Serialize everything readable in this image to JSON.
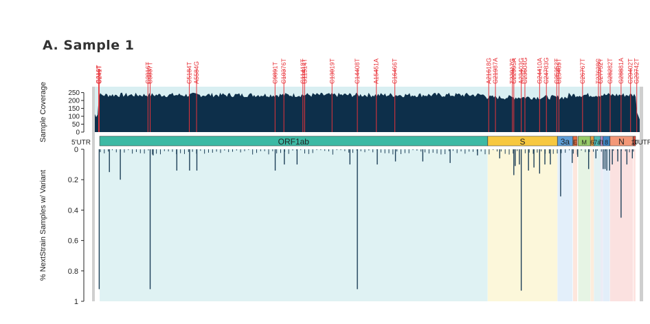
{
  "figure": {
    "panel_title": "A. Sample 1"
  },
  "chart_data": [
    {
      "type": "area",
      "name": "coverage",
      "ylabel": "Sample Coverage",
      "yticks": [
        0,
        50,
        100,
        150,
        200,
        250
      ],
      "ylim": [
        0,
        270
      ],
      "xlim": [
        0,
        29903
      ],
      "fill_color": "#0d2f4a",
      "background_color": "#d9eff2",
      "typical_coverage": 240,
      "variants": [
        {
          "label": "C241T",
          "pos": 241
        },
        {
          "label": "G210T",
          "pos": 210
        },
        {
          "label": "C3037T",
          "pos": 3037
        },
        {
          "label": "C2916T",
          "pos": 2916
        },
        {
          "label": "C5184T",
          "pos": 5184
        },
        {
          "label": "A5584G",
          "pos": 5584
        },
        {
          "label": "C9891T",
          "pos": 9891
        },
        {
          "label": "C10376T",
          "pos": 10376
        },
        {
          "label": "C11418T",
          "pos": 11418
        },
        {
          "label": "G11514T",
          "pos": 11514
        },
        {
          "label": "C13019T",
          "pos": 13019
        },
        {
          "label": "C14408T",
          "pos": 14408
        },
        {
          "label": "A15451A",
          "pos": 15451
        },
        {
          "label": "C16466T",
          "pos": 16466
        },
        {
          "label": "A21618G",
          "pos": 21618
        },
        {
          "label": "G21987A",
          "pos": 21987
        },
        {
          "label": "T22917G",
          "pos": 22917
        },
        {
          "label": "C22995A",
          "pos": 22995
        },
        {
          "label": "A23403G",
          "pos": 23403
        },
        {
          "label": "C23604G",
          "pos": 23604
        },
        {
          "label": "G24410A",
          "pos": 24410
        },
        {
          "label": "C24783G",
          "pos": 24783
        },
        {
          "label": "C25352T",
          "pos": 25352
        },
        {
          "label": "C25469T",
          "pos": 25469
        },
        {
          "label": "C26767T",
          "pos": 26767
        },
        {
          "label": "T27638C",
          "pos": 27638
        },
        {
          "label": "C27752T",
          "pos": 27752
        },
        {
          "label": "G28881A",
          "pos": 28881
        },
        {
          "label": "G28282T",
          "pos": 28282
        },
        {
          "label": "C29402T",
          "pos": 29402
        },
        {
          "label": "G29742T",
          "pos": 29742
        }
      ],
      "variant_color": "#e8333a"
    },
    {
      "type": "bar",
      "name": "variant-frequency",
      "ylabel": "% NextStrain Samples w/ Variant",
      "yticks": [
        "0",
        "0.2",
        "0.4",
        "0.6",
        "0.8",
        "1"
      ],
      "ylim": [
        1,
        0
      ],
      "xlim": [
        0,
        29903
      ],
      "bar_color": "#1c3e57",
      "genes": [
        {
          "name": "5'UTR",
          "start": 0,
          "end": 265,
          "color": "#ffffff",
          "bg": "#ffffff"
        },
        {
          "name": "ORF1ab",
          "start": 266,
          "end": 21555,
          "color": "#3db9a4",
          "bg": "#dff2f3"
        },
        {
          "name": "S",
          "start": 21563,
          "end": 25384,
          "color": "#f7c840",
          "bg": "#fcf7da"
        },
        {
          "name": "3a",
          "start": 25393,
          "end": 26220,
          "color": "#5f9fd9",
          "bg": "#e3effa"
        },
        {
          "name": "E",
          "start": 26245,
          "end": 26472,
          "color": "#e66b3d",
          "bg": "#fde6dc"
        },
        {
          "name": "M",
          "start": 26523,
          "end": 27191,
          "color": "#98cb6a",
          "bg": "#e6f4e4"
        },
        {
          "name": "6",
          "start": 27202,
          "end": 27387,
          "color": "#e49f3f",
          "bg": "#fcecdc"
        },
        {
          "name": "7a",
          "start": 27394,
          "end": 27759,
          "color": "#4fb9b4",
          "bg": "#e3f1f3"
        },
        {
          "name": "7b",
          "start": 27756,
          "end": 27887,
          "color": "#b38ccf",
          "bg": "#ecebf5"
        },
        {
          "name": "8",
          "start": 27894,
          "end": 28259,
          "color": "#3e86c7",
          "bg": "#e2eef9"
        },
        {
          "name": "N",
          "start": 28274,
          "end": 29533,
          "color": "#f39878",
          "bg": "#fbe1e0"
        },
        {
          "name": "10",
          "start": 29558,
          "end": 29674,
          "color": "#e64c3b",
          "bg": "#fde3e0"
        },
        {
          "name": "3'UTR",
          "start": 29675,
          "end": 29903,
          "color": "#ffffff",
          "bg": "#ffffff"
        }
      ],
      "bars": [
        {
          "pos": 241,
          "value": 0.92
        },
        {
          "pos": 3037,
          "value": 0.92
        },
        {
          "pos": 14408,
          "value": 0.92
        },
        {
          "pos": 23403,
          "value": 0.93
        },
        {
          "pos": 25563,
          "value": 0.31
        },
        {
          "pos": 28881,
          "value": 0.45
        },
        {
          "pos": 800,
          "value": 0.15
        },
        {
          "pos": 1400,
          "value": 0.2
        },
        {
          "pos": 3200,
          "value": 0.04
        },
        {
          "pos": 4500,
          "value": 0.14
        },
        {
          "pos": 5200,
          "value": 0.14
        },
        {
          "pos": 5600,
          "value": 0.14
        },
        {
          "pos": 9900,
          "value": 0.14
        },
        {
          "pos": 10400,
          "value": 0.1
        },
        {
          "pos": 11100,
          "value": 0.1
        },
        {
          "pos": 14000,
          "value": 0.1
        },
        {
          "pos": 15500,
          "value": 0.1
        },
        {
          "pos": 16500,
          "value": 0.08
        },
        {
          "pos": 18000,
          "value": 0.08
        },
        {
          "pos": 19500,
          "value": 0.09
        },
        {
          "pos": 21000,
          "value": 0.04
        },
        {
          "pos": 22220,
          "value": 0.06
        },
        {
          "pos": 22995,
          "value": 0.17
        },
        {
          "pos": 23070,
          "value": 0.11
        },
        {
          "pos": 23300,
          "value": 0.1
        },
        {
          "pos": 23800,
          "value": 0.14
        },
        {
          "pos": 24100,
          "value": 0.12
        },
        {
          "pos": 24410,
          "value": 0.16
        },
        {
          "pos": 24700,
          "value": 0.1
        },
        {
          "pos": 25000,
          "value": 0.1
        },
        {
          "pos": 26200,
          "value": 0.09
        },
        {
          "pos": 26500,
          "value": 0.05
        },
        {
          "pos": 27100,
          "value": 0.13
        },
        {
          "pos": 27500,
          "value": 0.06
        },
        {
          "pos": 27900,
          "value": 0.13
        },
        {
          "pos": 28000,
          "value": 0.13
        },
        {
          "pos": 28100,
          "value": 0.14
        },
        {
          "pos": 28250,
          "value": 0.14
        },
        {
          "pos": 28400,
          "value": 0.1
        },
        {
          "pos": 28700,
          "value": 0.08
        },
        {
          "pos": 29200,
          "value": 0.1
        },
        {
          "pos": 29500,
          "value": 0.06
        }
      ]
    }
  ]
}
